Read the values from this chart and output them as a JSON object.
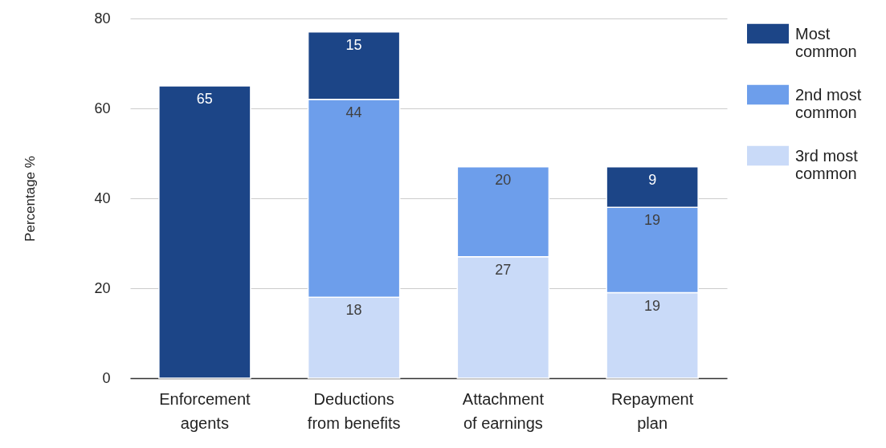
{
  "chart_data": {
    "type": "bar",
    "stacked": true,
    "ylabel": "Percentage %",
    "categories": [
      "Enforcement agents",
      "Deductions from benefits",
      "Attachment of earnings",
      "Repayment plan"
    ],
    "series": [
      {
        "name": "3rd most common",
        "color": "#c9daf8",
        "values": [
          null,
          18,
          27,
          19
        ]
      },
      {
        "name": "2nd most common",
        "color": "#6d9eeb",
        "values": [
          null,
          44,
          20,
          19
        ]
      },
      {
        "name": "Most common",
        "color": "#1c4587",
        "values": [
          65,
          15,
          null,
          9
        ]
      }
    ],
    "ylim": [
      0,
      80
    ],
    "yticks": [
      0,
      20,
      40,
      60,
      80
    ],
    "grid": "y",
    "legend": "right",
    "data_labels": true
  }
}
